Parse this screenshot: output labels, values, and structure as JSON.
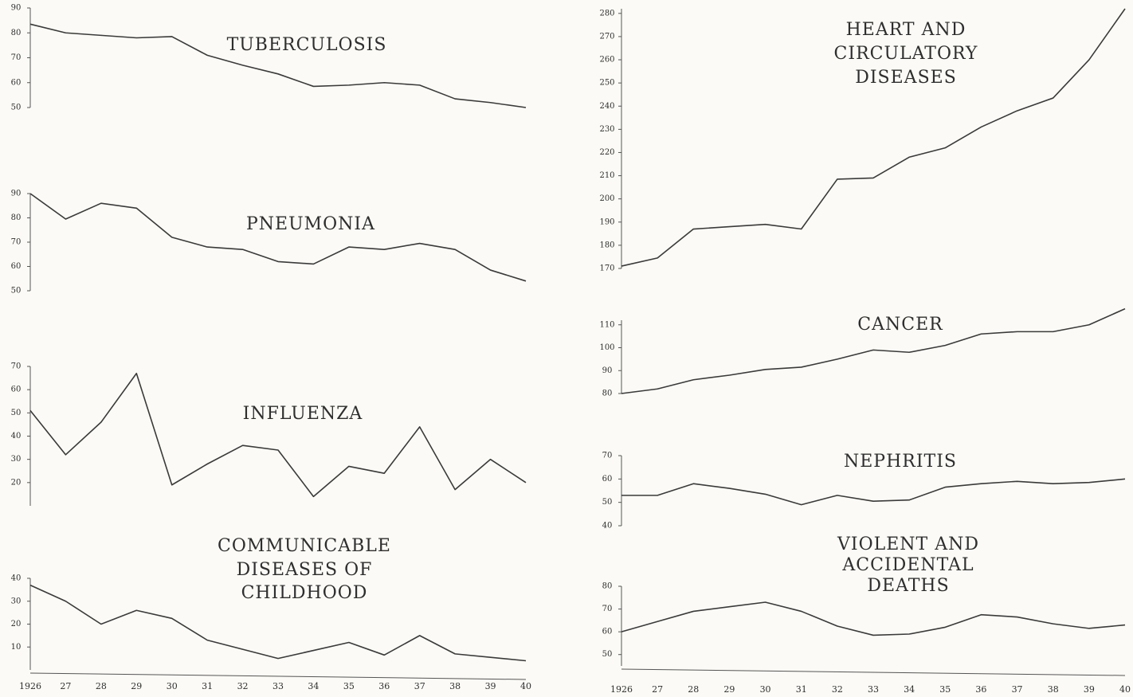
{
  "chart_data": [
    {
      "type": "line",
      "title": [
        "TUBERCULOSIS"
      ],
      "color": "#3a3a3a",
      "values": [
        83.5,
        80,
        79,
        78,
        78.5,
        71,
        67,
        63.5,
        58.5,
        59,
        60,
        59,
        53.5,
        52,
        50
      ],
      "ylim": [
        50,
        90
      ],
      "yticks": [
        50,
        60,
        70,
        80,
        90
      ]
    },
    {
      "type": "line",
      "title": [
        "PNEUMONIA"
      ],
      "color": "#3a3a3a",
      "values": [
        90,
        79.5,
        86,
        84,
        72,
        68,
        67,
        62,
        61,
        68,
        67,
        69.5,
        67,
        58.5,
        54
      ],
      "ylim": [
        50,
        90
      ],
      "yticks": [
        50,
        60,
        70,
        80,
        90
      ]
    },
    {
      "type": "line",
      "title": [
        "INFLUENZA"
      ],
      "color": "#3a3a3a",
      "values": [
        51,
        32,
        46,
        67,
        19,
        28,
        36,
        34,
        14,
        27,
        24,
        44,
        17,
        30,
        20
      ],
      "ylim": [
        10,
        70
      ],
      "yticks": [
        20,
        30,
        40,
        50,
        60,
        70
      ]
    },
    {
      "type": "line",
      "title": [
        "COMMUNICABLE",
        "DISEASES OF",
        "CHILDHOOD"
      ],
      "color": "#3a3a3a",
      "categories": [
        "1926",
        "27",
        "28",
        "29",
        "30",
        "31",
        "32",
        "33",
        "34",
        "35",
        "36",
        "37",
        "38",
        "39",
        "40"
      ],
      "values": [
        37,
        30,
        20,
        26,
        22.5,
        13,
        9,
        5,
        8.5,
        12,
        6.5,
        15,
        7,
        5.5,
        4
      ],
      "ylim": [
        0,
        40
      ],
      "yticks": [
        10,
        20,
        30,
        40
      ]
    },
    {
      "type": "line",
      "title": [
        "HEART AND",
        "CIRCULATORY",
        "DISEASES"
      ],
      "color": "#3a3a3a",
      "values": [
        171,
        174.5,
        187,
        188,
        189,
        187,
        208.5,
        209,
        218,
        222,
        231,
        238,
        243.5,
        260,
        282
      ],
      "ylim": [
        170,
        282
      ],
      "yticks": [
        170,
        180,
        190,
        200,
        210,
        220,
        230,
        240,
        250,
        260,
        270,
        280
      ]
    },
    {
      "type": "line",
      "title": [
        "CANCER"
      ],
      "color": "#3a3a3a",
      "values": [
        80,
        82,
        86,
        88,
        90.5,
        91.5,
        95,
        99,
        98,
        101,
        106,
        107,
        107,
        110,
        117
      ],
      "ylim": [
        80,
        112
      ],
      "yticks": [
        80,
        90,
        100,
        110
      ]
    },
    {
      "type": "line",
      "title": [
        "NEPHRITIS"
      ],
      "color": "#3a3a3a",
      "values": [
        53,
        53,
        58,
        56,
        53.5,
        49,
        53,
        50.5,
        51,
        56.5,
        58,
        59,
        58,
        58.5,
        60
      ],
      "ylim": [
        40,
        70
      ],
      "yticks": [
        40,
        50,
        60,
        70
      ]
    },
    {
      "type": "line",
      "title": [
        "VIOLENT AND",
        "ACCIDENTAL",
        "DEATHS"
      ],
      "color": "#3a3a3a",
      "categories": [
        "1926",
        "27",
        "28",
        "29",
        "30",
        "31",
        "32",
        "33",
        "34",
        "35",
        "36",
        "37",
        "38",
        "39",
        "40"
      ],
      "values": [
        60,
        64.5,
        69,
        71,
        73,
        69,
        62.5,
        58.5,
        59,
        62,
        67.5,
        66.5,
        63.5,
        61.5,
        63
      ],
      "ylim": [
        45,
        80
      ],
      "yticks": [
        50,
        60,
        70,
        80
      ]
    }
  ]
}
